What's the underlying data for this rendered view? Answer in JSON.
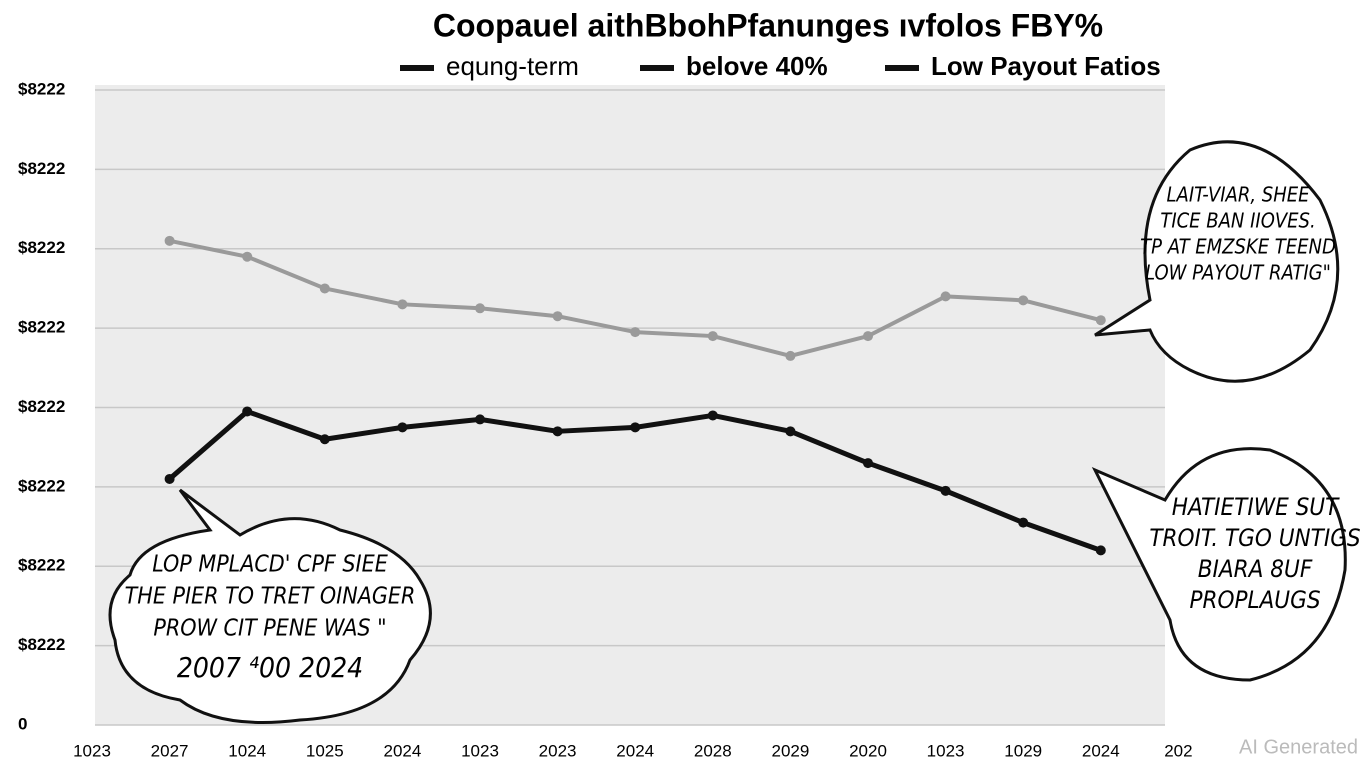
{
  "chart_data": {
    "type": "line",
    "title": "Coopauel aithBbohPfanunges ıvfolos FBY%",
    "categories": [
      "1023",
      "2027",
      "1024",
      "1025",
      "2024",
      "1023",
      "2023",
      "2024",
      "2028",
      "2029",
      "2020",
      "1023",
      "1029",
      "2024",
      "202"
    ],
    "series": [
      {
        "name": "equng-term",
        "color": "#9a9a9a",
        "values": [
          null,
          6.1,
          5.9,
          5.5,
          5.3,
          5.25,
          5.15,
          4.95,
          4.9,
          4.65,
          4.9,
          5.4,
          5.35,
          5.1,
          null
        ]
      },
      {
        "name": "belove 40%",
        "color": "#111111",
        "values": [
          null,
          3.1,
          3.95,
          3.6,
          3.75,
          3.85,
          3.7,
          3.75,
          3.9,
          3.7,
          3.3,
          2.95,
          2.55,
          2.2,
          null
        ]
      },
      {
        "name": "Low Payout Fatios",
        "color": "#111111",
        "values": [
          null,
          null,
          null,
          null,
          null,
          null,
          null,
          null,
          null,
          null,
          null,
          null,
          null,
          null,
          null
        ]
      }
    ],
    "ylim": [
      0,
      8
    ],
    "yticks": [
      0,
      {
        "value": 1,
        "label": "$8222"
      },
      {
        "value": 2,
        "label": "$8222"
      },
      {
        "value": 3,
        "label": "$8222"
      },
      {
        "value": 4,
        "label": "$8222"
      },
      {
        "value": 5,
        "label": "$8222"
      },
      {
        "value": 6,
        "label": "$8222"
      },
      {
        "value": 7,
        "label": "$8222"
      },
      {
        "value": 8,
        "label": "$8222"
      }
    ],
    "grid": true,
    "annotations": [
      {
        "lines": [
          "LOP MPLACD' CPF SIEE",
          "THE PIER TO TRET OINAGER",
          "PROW CIT PENE WAS \"",
          "2007 ⁴00 2024"
        ]
      },
      {
        "lines": [
          "LAIT-VIAR, SHEE",
          "TICE BAN IIOVES.",
          "TP AT EMZSKE TEEND",
          "LOW PAYOUT RATIG\""
        ]
      },
      {
        "lines": [
          "HATIETIWE SUT",
          "TROIT. TGO UNTIGS",
          "BIARA 8UF",
          "PROPLAUGS"
        ]
      }
    ],
    "watermark": "AI Generated"
  }
}
